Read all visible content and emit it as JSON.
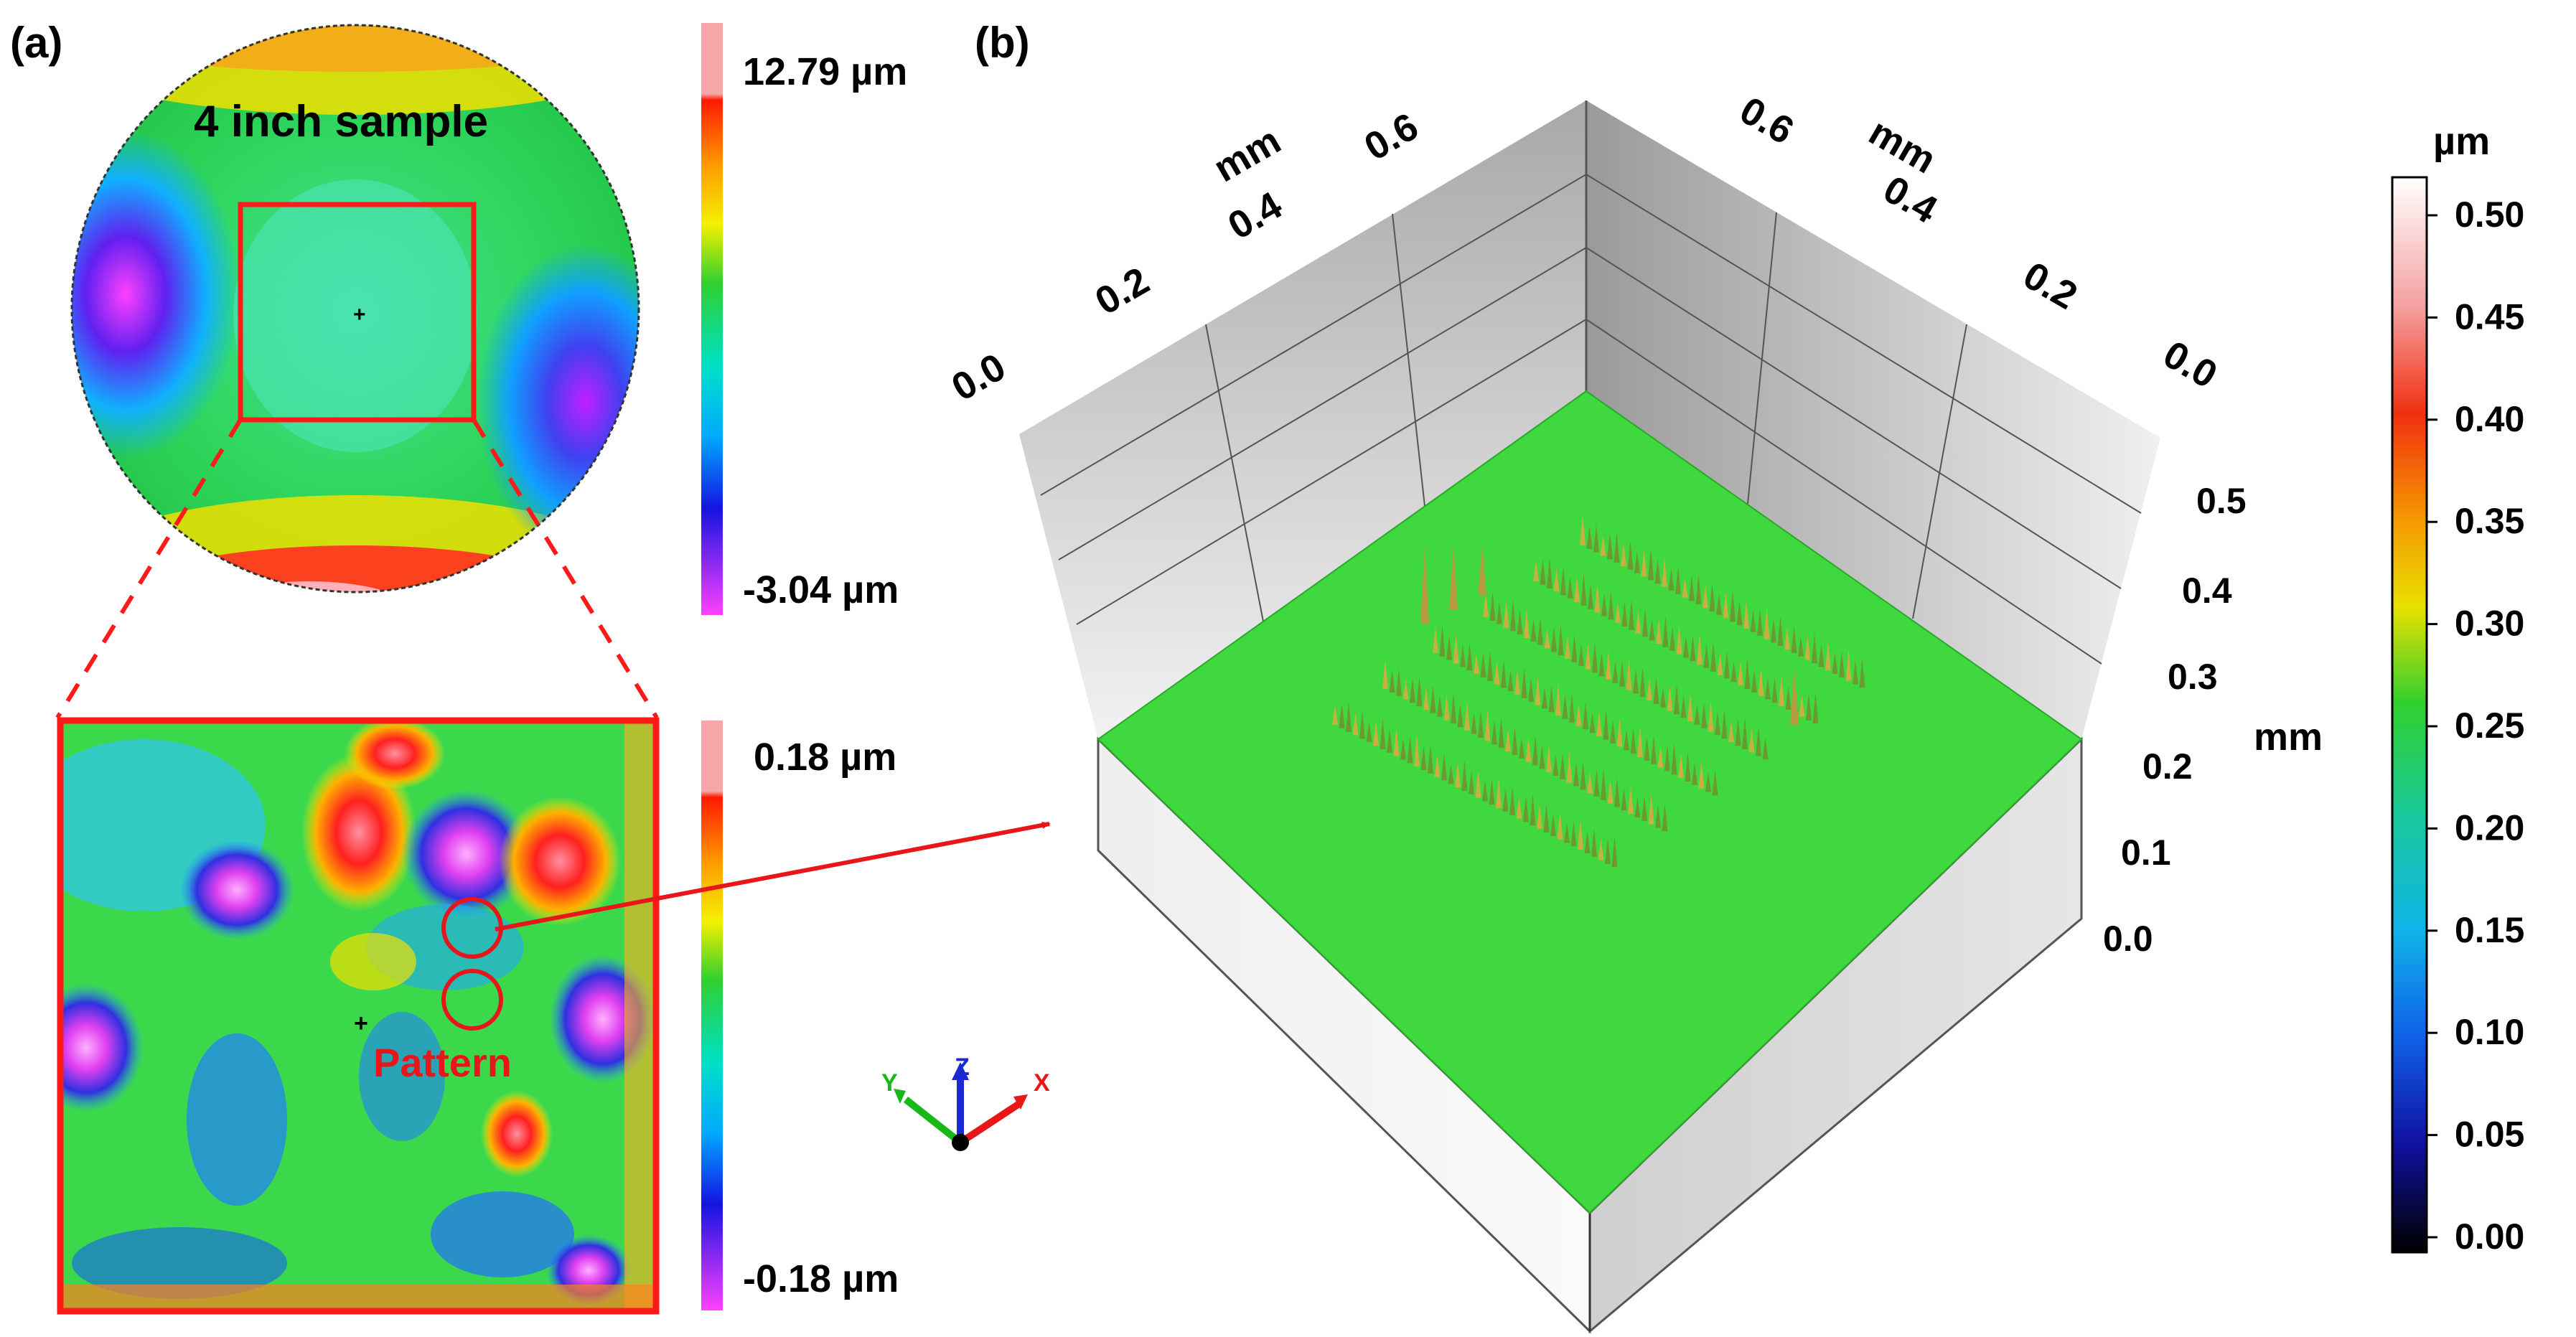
{
  "panel_a": {
    "label": "(a)",
    "wafer": {
      "title": "4 inch sample",
      "colorbar": {
        "max_label": "12.79 µm",
        "min_label": "-3.04 µm"
      }
    },
    "zoom": {
      "annotation": "Pattern",
      "colorbar": {
        "max_label": "0.18 µm",
        "min_label": "-0.18 µm"
      }
    },
    "triad": {
      "x": "X",
      "y": "Y",
      "z": "Z"
    }
  },
  "panel_b": {
    "label": "(b)",
    "back_left_axis": {
      "unit": "mm",
      "ticks": [
        "0.0",
        "0.2",
        "0.4",
        "0.6"
      ]
    },
    "back_right_axis": {
      "unit": "mm",
      "ticks": [
        "0.6",
        "0.4",
        "0.2",
        "0.0"
      ]
    },
    "vertical_axis": {
      "unit": "mm",
      "ticks": [
        "0.5",
        "0.4",
        "0.3",
        "0.2",
        "0.1",
        "0.0"
      ]
    },
    "colorbar": {
      "unit": "µm",
      "ticks": [
        "0.50",
        "0.45",
        "0.40",
        "0.35",
        "0.30",
        "0.25",
        "0.20",
        "0.15",
        "0.10",
        "0.05",
        "0.00"
      ]
    }
  },
  "colors": {
    "highlight": "#ff1a1a",
    "surface_green": "#3fd83f",
    "arrow": "#e8161b"
  }
}
